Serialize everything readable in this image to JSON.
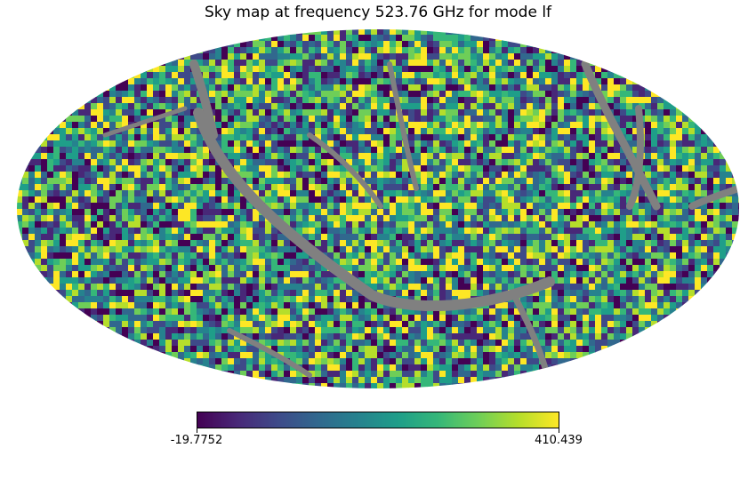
{
  "chart_data": {
    "type": "heatmap",
    "projection": "mollweide",
    "title": "Sky map at frequency 523.76 GHz for mode lf",
    "colormap": "viridis",
    "colorbar": {
      "min": -19.7752,
      "max": 410.439,
      "min_label": "-19.7752",
      "max_label": "410.439",
      "orientation": "horizontal"
    },
    "masked_color": "#808080",
    "masked_region_description": "grey masked bands forming gaps across the sky",
    "colors": {
      "viridis": [
        "#440154",
        "#482878",
        "#3e4a89",
        "#31688e",
        "#26828e",
        "#1f9e89",
        "#35b779",
        "#6ece58",
        "#b5de2b",
        "#fde725"
      ]
    }
  }
}
